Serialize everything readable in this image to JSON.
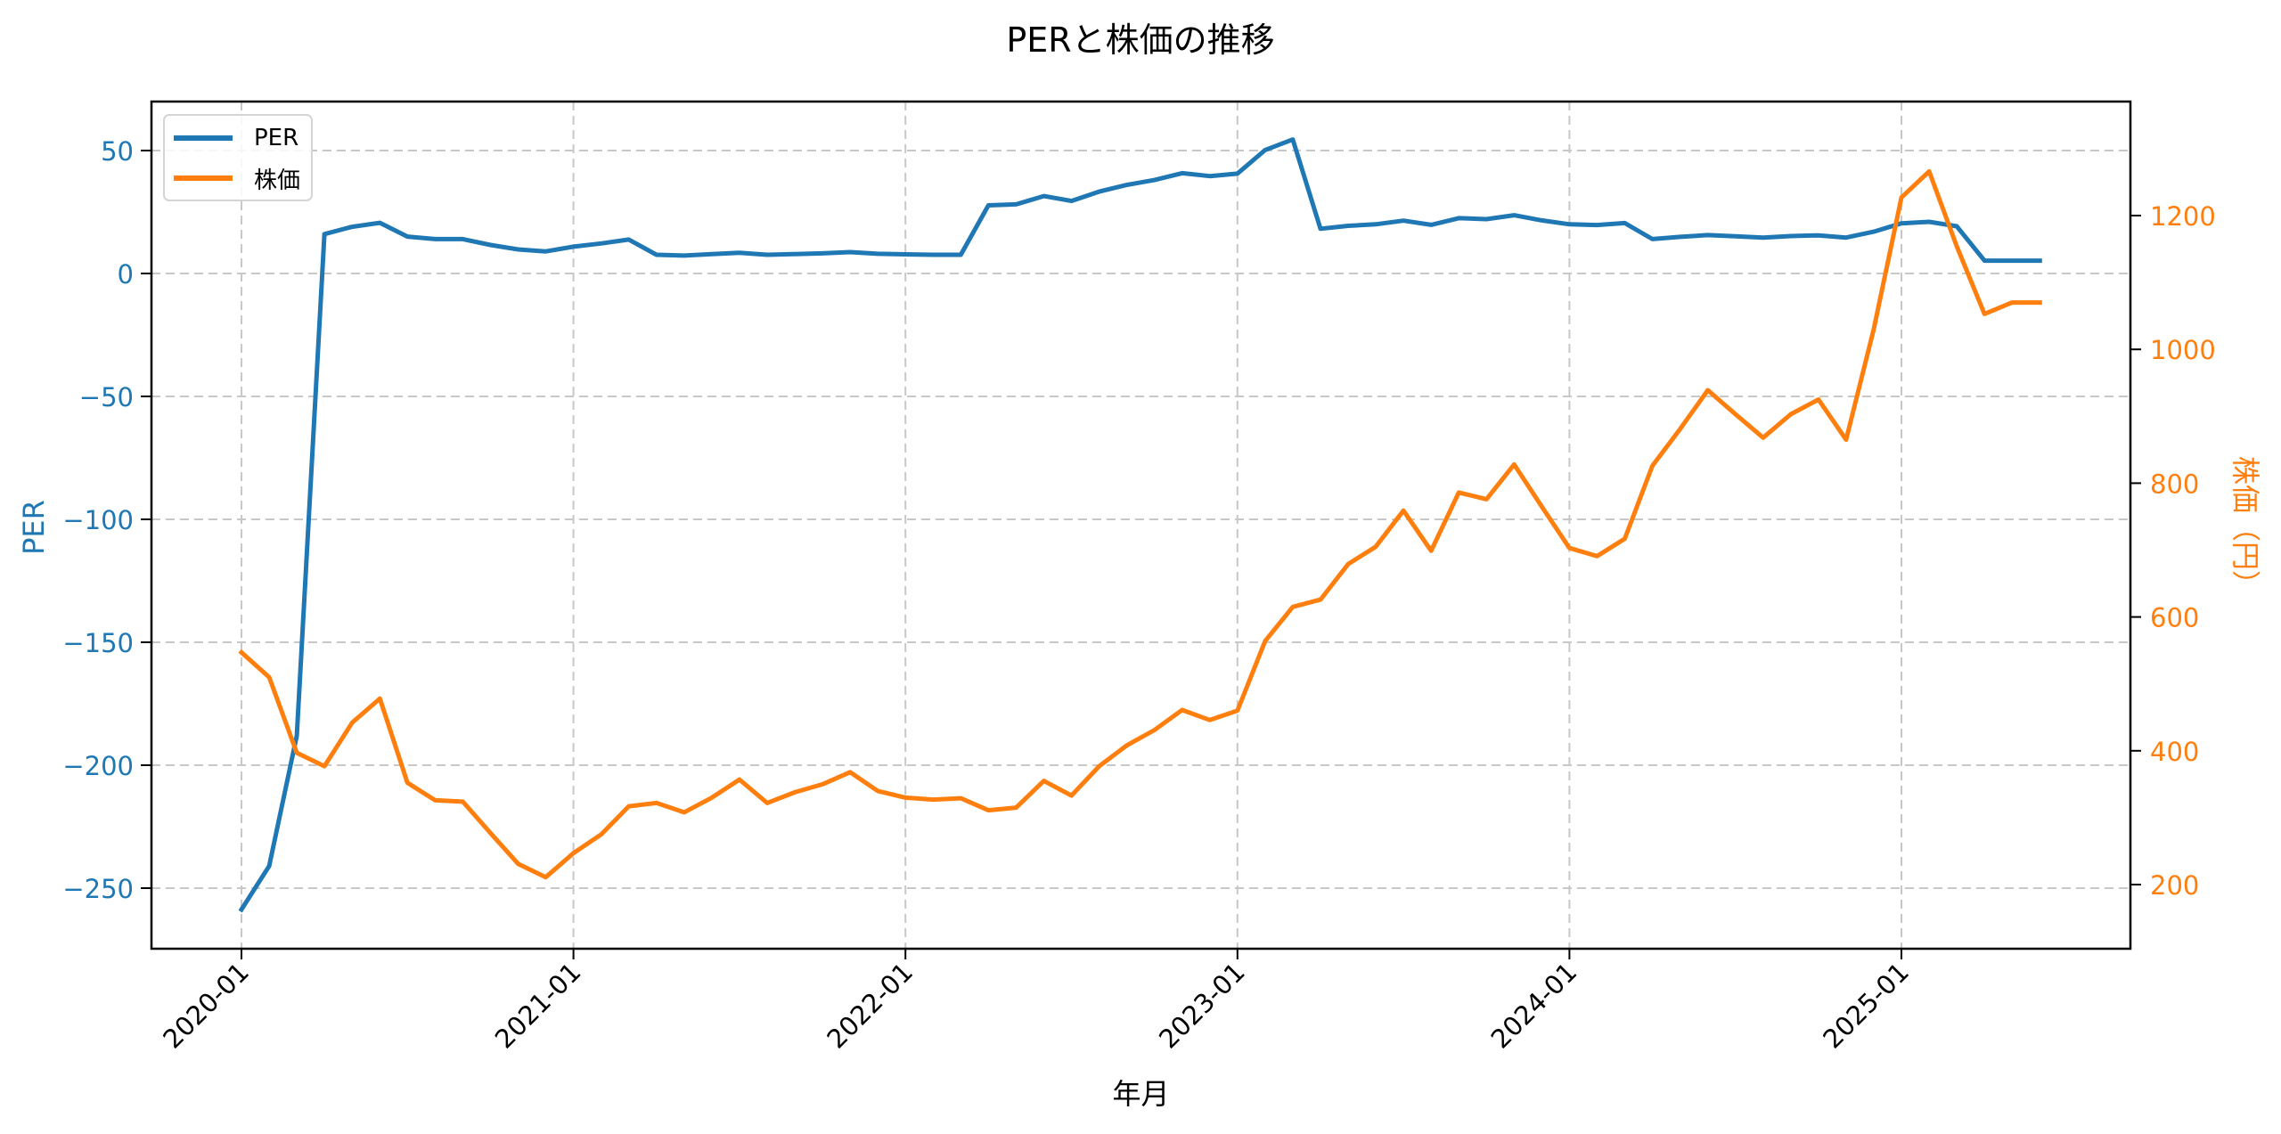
{
  "chart_data": {
    "type": "line",
    "title": "PERと株価の推移",
    "xlabel": "年月",
    "ylabel": "PER",
    "ylabel_right": "株価（円）",
    "x": [
      "2020-01",
      "2020-02",
      "2020-03",
      "2020-04",
      "2020-05",
      "2020-06",
      "2020-07",
      "2020-08",
      "2020-09",
      "2020-10",
      "2020-11",
      "2020-12",
      "2021-01",
      "2021-02",
      "2021-03",
      "2021-04",
      "2021-05",
      "2021-06",
      "2021-07",
      "2021-08",
      "2021-09",
      "2021-10",
      "2021-11",
      "2021-12",
      "2022-01",
      "2022-02",
      "2022-03",
      "2022-04",
      "2022-05",
      "2022-06",
      "2022-07",
      "2022-08",
      "2022-09",
      "2022-10",
      "2022-11",
      "2022-12",
      "2023-01",
      "2023-02",
      "2023-03",
      "2023-04",
      "2023-05",
      "2023-06",
      "2023-07",
      "2023-08",
      "2023-09",
      "2023-10",
      "2023-11",
      "2023-12",
      "2024-01",
      "2024-02",
      "2024-03",
      "2024-04",
      "2024-05",
      "2024-06",
      "2024-07",
      "2024-08",
      "2024-09",
      "2024-10",
      "2024-11",
      "2024-12",
      "2025-01",
      "2025-02",
      "2025-03",
      "2025-04",
      "2025-05",
      "2025-06"
    ],
    "series": [
      {
        "name": "PER",
        "axis": "left",
        "color": "#1f77b4",
        "values": [
          -258.7,
          -241,
          -188,
          16,
          19,
          20.6,
          15,
          14,
          14,
          11.6,
          9.8,
          9,
          10.9,
          12.2,
          13.8,
          7.6,
          7.3,
          7.9,
          8.4,
          7.6,
          7.9,
          8.2,
          8.7,
          8.0,
          7.8,
          7.6,
          7.6,
          27.7,
          28.1,
          31.5,
          29.5,
          33.3,
          36,
          38,
          40.8,
          39.6,
          40.6,
          50.2,
          54.5,
          18.2,
          19.4,
          20.0,
          21.5,
          19.8,
          22.5,
          22.1,
          23.7,
          21.6,
          20.0,
          19.7,
          20.5,
          14.0,
          14.9,
          15.6,
          15.1,
          14.6,
          15.2,
          15.5,
          14.6,
          17.0,
          20.4,
          21.0,
          19.2,
          5.2,
          5.2,
          5.2
        ]
      },
      {
        "name": "株価",
        "axis": "right",
        "color": "#ff7f0e",
        "values": [
          547,
          510,
          397,
          377,
          442,
          478,
          352,
          326,
          324,
          277,
          231,
          211,
          247,
          275,
          317,
          322,
          308,
          330,
          357,
          322,
          338,
          350,
          368,
          340,
          330,
          327,
          329,
          311,
          315,
          355,
          333,
          377,
          408,
          431,
          461,
          446,
          460,
          564,
          615,
          626,
          679,
          705,
          759,
          699,
          786,
          776,
          828,
          765,
          703,
          691,
          717,
          826,
          881,
          939,
          903,
          868,
          903,
          925,
          865,
          1030,
          1227,
          1266,
          1154,
          1053,
          1070,
          1070
        ]
      }
    ],
    "x_ticks": [
      "2020-01",
      "2021-01",
      "2022-01",
      "2023-01",
      "2024-01",
      "2025-01"
    ],
    "y_ticks_left": [
      50,
      0,
      -50,
      -100,
      -150,
      -200,
      -250
    ],
    "y_ticks_right": [
      200,
      400,
      600,
      800,
      1000,
      1200
    ],
    "ylim_left": [
      -274,
      69
    ],
    "ylim_right": [
      105,
      1372
    ],
    "grid": true,
    "grid_style": "dashed",
    "legend_position": "upper left",
    "x_tick_rotation": 45
  },
  "legend": {
    "items": [
      {
        "label": "PER",
        "color": "#1f77b4"
      },
      {
        "label": "株価",
        "color": "#ff7f0e"
      }
    ]
  },
  "colors": {
    "per": "#1f77b4",
    "price": "#ff7f0e",
    "grid": "#c8c8c8",
    "axis": "#000000"
  }
}
